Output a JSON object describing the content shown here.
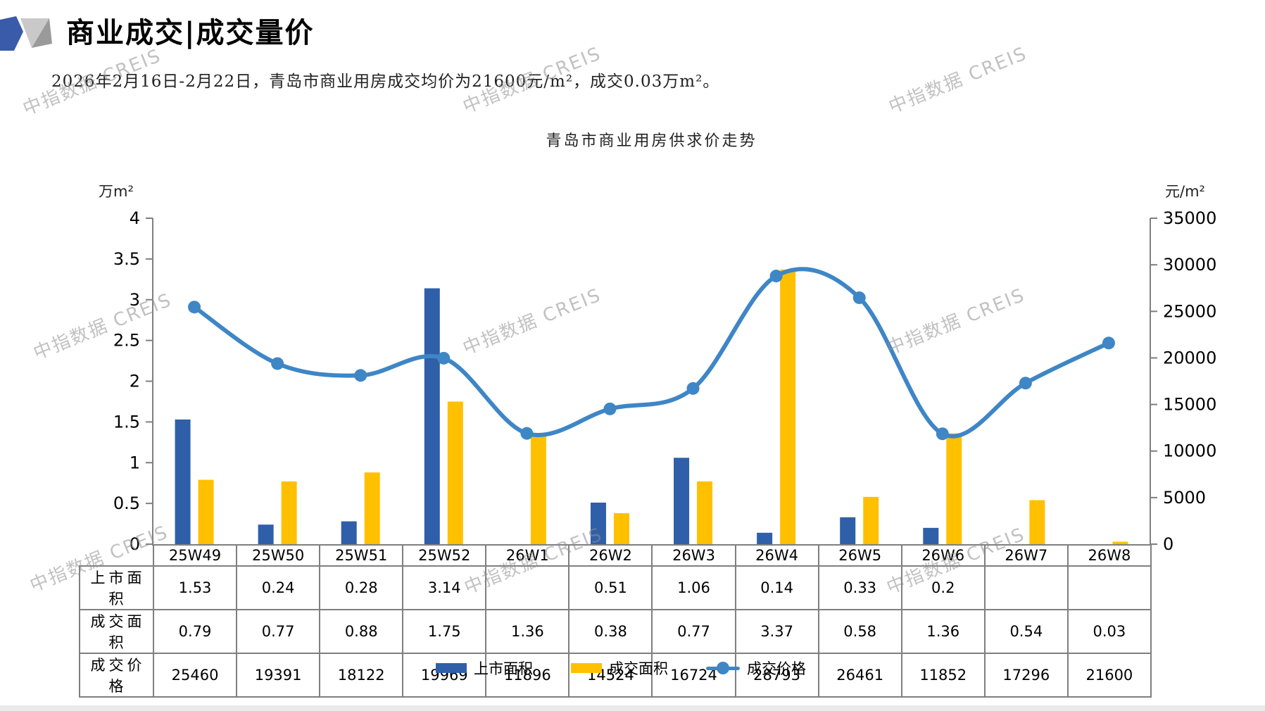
{
  "page": {
    "title": "商业成交|成交量价",
    "subtitle": "2026年2月16日-2月22日，青岛市商业用房成交均价为21600元/m²，成交0.03万m²。",
    "watermark": "中指数据 CREIS"
  },
  "chart_data": {
    "type": "bar",
    "subtype": "combo-bar-line",
    "title": "青岛市商业用房供求价走势",
    "categories": [
      "25W49",
      "25W50",
      "25W51",
      "25W52",
      "26W1",
      "26W2",
      "26W3",
      "26W4",
      "26W5",
      "26W6",
      "26W7",
      "26W8"
    ],
    "series": [
      {
        "name": "上市面积",
        "type": "bar",
        "axis": "left",
        "color": "#2F5FA8",
        "values": [
          1.53,
          0.24,
          0.28,
          3.14,
          null,
          0.51,
          1.06,
          0.14,
          0.33,
          0.2,
          null,
          null
        ]
      },
      {
        "name": "成交面积",
        "type": "bar",
        "axis": "left",
        "color": "#FFC000",
        "values": [
          0.79,
          0.77,
          0.88,
          1.75,
          1.36,
          0.38,
          0.77,
          3.37,
          0.58,
          1.36,
          0.54,
          0.03
        ]
      },
      {
        "name": "成交价格",
        "type": "line",
        "axis": "right",
        "color": "#3E86C6",
        "smooth": true,
        "marker": "circle",
        "values": [
          25460,
          19391,
          18122,
          19969,
          11896,
          14524,
          16724,
          28793,
          26461,
          11852,
          17296,
          21600
        ]
      }
    ],
    "left_axis": {
      "unit": "万m²",
      "min": 0,
      "max": 4,
      "step": 0.5
    },
    "right_axis": {
      "unit": "元/m²",
      "min": 0,
      "max": 35000,
      "step": 5000
    },
    "grid": false,
    "legend_position": "bottom"
  },
  "table": {
    "rows": [
      {
        "label": "上市面积",
        "values": [
          "1.53",
          "0.24",
          "0.28",
          "3.14",
          "",
          "0.51",
          "1.06",
          "0.14",
          "0.33",
          "0.2",
          "",
          ""
        ]
      },
      {
        "label": "成交面积",
        "values": [
          "0.79",
          "0.77",
          "0.88",
          "1.75",
          "1.36",
          "0.38",
          "0.77",
          "3.37",
          "0.58",
          "1.36",
          "0.54",
          "0.03"
        ]
      },
      {
        "label": "成交价格",
        "values": [
          "25460",
          "19391",
          "18122",
          "19969",
          "11896",
          "14524",
          "16724",
          "28793",
          "26461",
          "11852",
          "17296",
          "21600"
        ]
      }
    ]
  },
  "colors": {
    "axis_gray": "#7f7f7f",
    "bar_blue": "#2F5FA8",
    "bar_yellow": "#FFC000",
    "line_blue": "#3E86C6",
    "logo_blue": "#3A5BA9"
  }
}
